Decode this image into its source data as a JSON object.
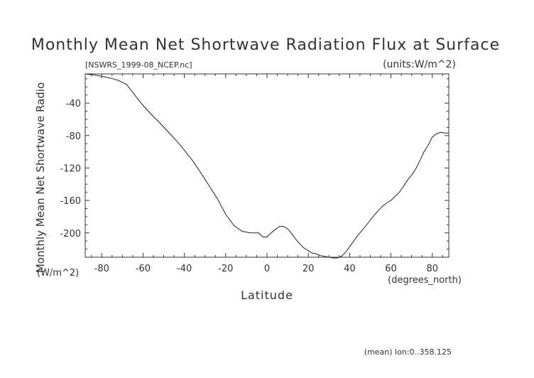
{
  "chart_data": {
    "type": "line",
    "title": "Monthly Mean Net Shortwave Radiation Flux at Surface",
    "subtitle_left": "[NSWRS_1999-08_NCEP.nc]",
    "subtitle_right": "(units:W/m^2)",
    "xlabel": "Latitude",
    "xunits": "(degrees_north)",
    "ylabel": "Monthly Mean Net Shortwave Radio",
    "yunits": "(W/m^2)",
    "footnote": "(mean) lon:0..358.125",
    "xlim": [
      -88,
      88
    ],
    "ylim": [
      -230,
      -4
    ],
    "xticks": [
      -80,
      -60,
      -40,
      -20,
      0,
      20,
      40,
      60,
      80
    ],
    "yticks": [
      -40,
      -80,
      -120,
      -160,
      -200
    ],
    "x": [
      -88,
      -82,
      -76,
      -72,
      -68,
      -64,
      -60,
      -56,
      -52,
      -48,
      -44,
      -40,
      -36,
      -32,
      -28,
      -24,
      -20,
      -16,
      -12,
      -8,
      -4,
      -2,
      0,
      2,
      4,
      6,
      8,
      10,
      12,
      14,
      16,
      18,
      20,
      22,
      24,
      26,
      28,
      30,
      32,
      34,
      36,
      38,
      40,
      42,
      44,
      46,
      48,
      50,
      52,
      54,
      56,
      58,
      60,
      62,
      64,
      66,
      68,
      70,
      72,
      74,
      76,
      78,
      80,
      82,
      84,
      86,
      88
    ],
    "y": [
      -4,
      -6,
      -9,
      -12,
      -17,
      -30,
      -43,
      -54,
      -64,
      -75,
      -86,
      -98,
      -111,
      -126,
      -142,
      -158,
      -177,
      -191,
      -198,
      -200,
      -200,
      -205,
      -205,
      -200,
      -196,
      -192,
      -192,
      -195,
      -201,
      -208,
      -214,
      -219,
      -222,
      -225,
      -226,
      -228,
      -229,
      -230,
      -231,
      -231,
      -229,
      -224,
      -217,
      -210,
      -203,
      -197,
      -191,
      -184,
      -178,
      -172,
      -167,
      -163,
      -160,
      -155,
      -150,
      -143,
      -135,
      -129,
      -121,
      -111,
      -100,
      -92,
      -82,
      -78,
      -76,
      -77,
      -77
    ]
  }
}
